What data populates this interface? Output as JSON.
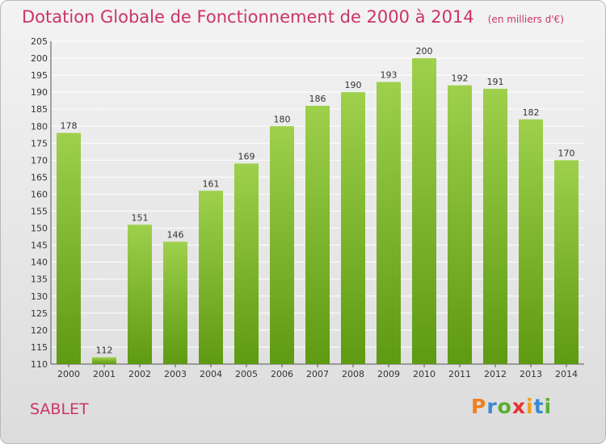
{
  "header": {
    "title": "Dotation Globale de Fonctionnement de 2000 à 2014",
    "unit": "(en milliers d'€)"
  },
  "location": "SABLET",
  "logo": {
    "text": "Proxiti",
    "letters": [
      {
        "ch": "P",
        "color": "#f08020"
      },
      {
        "ch": "r",
        "color": "#3a8ad0"
      },
      {
        "ch": "o",
        "color": "#58b030"
      },
      {
        "ch": "x",
        "color": "#e83030"
      },
      {
        "ch": "i",
        "color": "#f0a020"
      },
      {
        "ch": "t",
        "color": "#3a8ad0"
      },
      {
        "ch": "i",
        "color": "#58b030"
      }
    ]
  },
  "colors": {
    "bar_top": "#9ed04c",
    "bar_bottom": "#5e9a12",
    "grid": "#ffffff",
    "text": "#333333",
    "accent": "#cc3366"
  },
  "chart_data": {
    "type": "bar",
    "categories": [
      "2000",
      "2001",
      "2002",
      "2003",
      "2004",
      "2005",
      "2006",
      "2007",
      "2008",
      "2009",
      "2010",
      "2011",
      "2012",
      "2013",
      "2014"
    ],
    "values": [
      178,
      112,
      151,
      146,
      161,
      169,
      180,
      186,
      190,
      193,
      200,
      192,
      191,
      182,
      170
    ],
    "title": "Dotation Globale de Fonctionnement de 2000 à 2014",
    "xlabel": "",
    "ylabel": "",
    "ylim": [
      110,
      205
    ],
    "yticks": [
      110,
      115,
      120,
      125,
      130,
      135,
      140,
      145,
      150,
      155,
      160,
      165,
      170,
      175,
      180,
      185,
      190,
      195,
      200,
      205
    ],
    "grid": true,
    "data_labels": true
  }
}
